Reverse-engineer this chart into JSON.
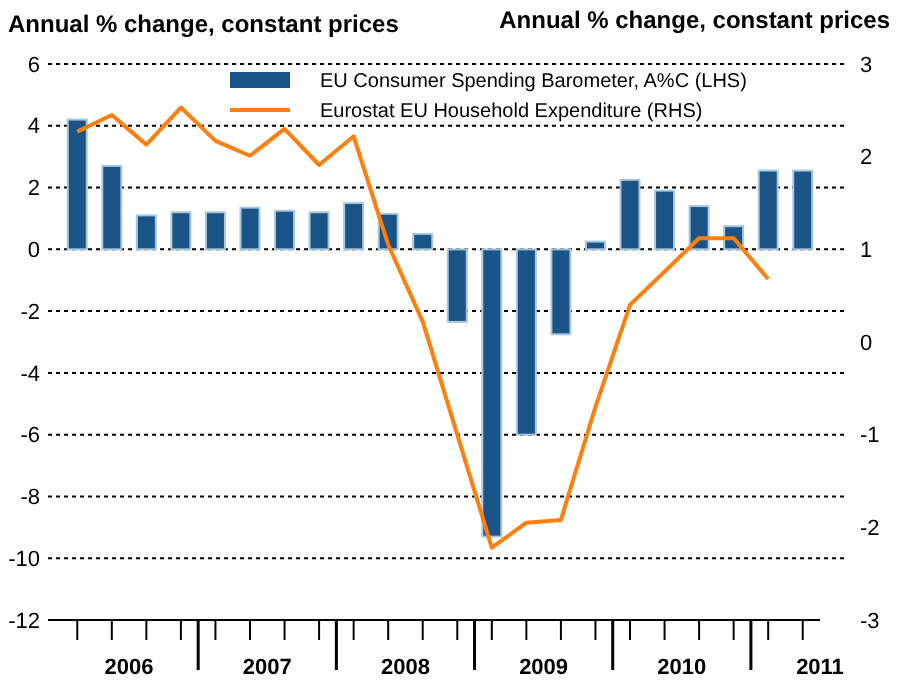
{
  "chart_data": {
    "type": "bar",
    "ylabel": "Annual % change, constant prices",
    "y2label": "Annual % change, constant prices",
    "x": [
      2006.125,
      2006.375,
      2006.625,
      2006.875,
      2007.125,
      2007.375,
      2007.625,
      2007.875,
      2008.125,
      2008.375,
      2008.625,
      2008.875,
      2009.125,
      2009.375,
      2009.625,
      2009.875,
      2010.125,
      2010.375,
      2010.625,
      2010.875,
      2011.125,
      2011.375
    ],
    "xlim": [
      2006,
      2011.5
    ],
    "xticks": [
      {
        "value": 2006.5,
        "label": "2006"
      },
      {
        "value": 2007.5,
        "label": "2007"
      },
      {
        "value": 2008.5,
        "label": "2008"
      },
      {
        "value": 2009.5,
        "label": "2009"
      },
      {
        "value": 2010.5,
        "label": "2010"
      },
      {
        "value": 2011.5,
        "label": "2011"
      },
      {
        "value": 2006.125,
        "label": null
      },
      {
        "value": 2006.375,
        "label": null
      },
      {
        "value": 2006.625,
        "label": null
      },
      {
        "value": 2006.875,
        "label": null
      },
      {
        "value": 2007,
        "label": null
      },
      {
        "value": 2007.125,
        "label": null
      },
      {
        "value": 2007.375,
        "label": null
      },
      {
        "value": 2007.625,
        "label": null
      },
      {
        "value": 2007.875,
        "label": null
      },
      {
        "value": 2008,
        "label": null
      },
      {
        "value": 2008.125,
        "label": null
      },
      {
        "value": 2008.375,
        "label": null
      },
      {
        "value": 2008.625,
        "label": null
      },
      {
        "value": 2008.875,
        "label": null
      },
      {
        "value": 2009,
        "label": null
      },
      {
        "value": 2009.125,
        "label": null
      },
      {
        "value": 2009.375,
        "label": null
      },
      {
        "value": 2009.625,
        "label": null
      },
      {
        "value": 2009.875,
        "label": null
      },
      {
        "value": 2010,
        "label": null
      },
      {
        "value": 2010.125,
        "label": null
      },
      {
        "value": 2010.375,
        "label": null
      },
      {
        "value": 2010.625,
        "label": null
      },
      {
        "value": 2010.875,
        "label": null
      },
      {
        "value": 2011,
        "label": null
      },
      {
        "value": 2011.125,
        "label": null
      },
      {
        "value": 2011.375,
        "label": null
      }
    ],
    "ylim": [
      -12,
      6
    ],
    "yticks": [
      -12,
      -10,
      -8,
      -6,
      -4,
      -2,
      0,
      2,
      4,
      6
    ],
    "y2lim": [
      -3,
      3
    ],
    "y2ticks": [
      -3,
      -2,
      -1,
      0,
      1,
      2,
      3
    ],
    "grid": "y",
    "legend": "top right",
    "series": [
      {
        "name": "EU Consumer Spending Barometer, A%C (LHS)",
        "color": "#1a5486",
        "values": [
          4.2,
          2.7,
          1.1,
          1.2,
          1.2,
          1.35,
          1.25,
          1.2,
          1.5,
          1.15,
          0.5,
          -2.35,
          -9.3,
          -6.0,
          -2.75,
          0.25,
          2.25,
          1.9,
          1.4,
          0.75,
          2.55,
          2.55
        ]
      },
      {
        "name": "Eurostat EU Household Expenditure (RHS)",
        "type": "line",
        "axis": "y2",
        "color": "#ff7f0e",
        "values": [
          2.27,
          2.45,
          2.13,
          2.53,
          2.17,
          2.01,
          2.3,
          1.91,
          2.22,
          1.05,
          0.22,
          -1.0,
          -2.22,
          -1.95,
          -1.92,
          -0.7,
          0.4,
          0.76,
          1.12,
          1.12,
          0.68,
          null
        ]
      }
    ]
  }
}
